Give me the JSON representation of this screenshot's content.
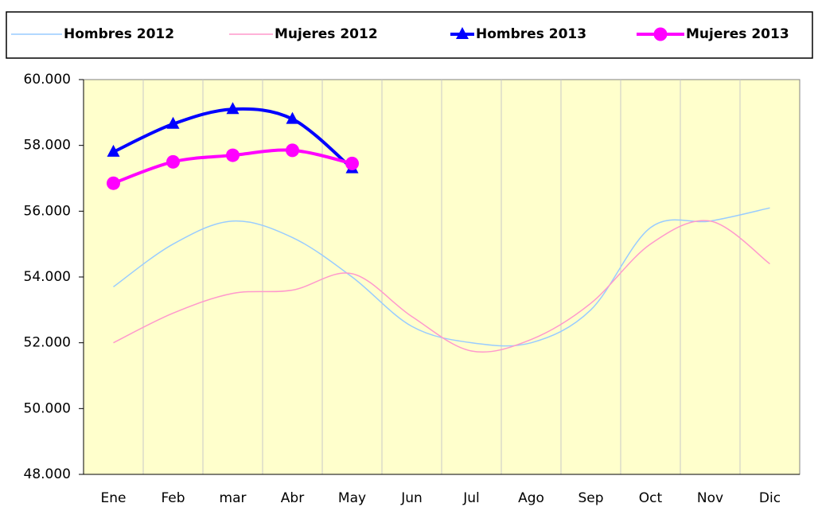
{
  "chart_data": {
    "type": "line",
    "categories": [
      "Ene",
      "Feb",
      "mar",
      "Abr",
      "May",
      "Jun",
      "Jul",
      "Ago",
      "Sep",
      "Oct",
      "Nov",
      "Dic"
    ],
    "series": [
      {
        "name": "Hombres 2012",
        "color": "#99ccff",
        "values": [
          53700,
          55000,
          55700,
          55200,
          54000,
          52500,
          52000,
          52000,
          53000,
          55500,
          55700,
          56100
        ]
      },
      {
        "name": "Mujeres 2012",
        "color": "#ff99cc",
        "values": [
          52000,
          52900,
          53500,
          53600,
          54100,
          52800,
          51750,
          52100,
          53200,
          55000,
          55700,
          54400
        ]
      },
      {
        "name": "Hombres 2013",
        "color": "#0000ff",
        "marker": "triangle",
        "values": [
          57800,
          58650,
          59100,
          58800,
          57300,
          null,
          null,
          null,
          null,
          null,
          null,
          null
        ]
      },
      {
        "name": "Mujeres 2013",
        "color": "#ff00ff",
        "marker": "circle",
        "values": [
          56850,
          57500,
          57700,
          57850,
          57450,
          null,
          null,
          null,
          null,
          null,
          null,
          null
        ]
      }
    ],
    "ylim": [
      48000,
      60000
    ],
    "yticks": [
      {
        "value": 48000,
        "label": "48.000"
      },
      {
        "value": 50000,
        "label": "50.000"
      },
      {
        "value": 52000,
        "label": "52.000"
      },
      {
        "value": 54000,
        "label": "54.000"
      },
      {
        "value": 56000,
        "label": "56.000"
      },
      {
        "value": 58000,
        "label": "58.000"
      },
      {
        "value": 60000,
        "label": "60.000"
      }
    ],
    "legend": "top"
  }
}
